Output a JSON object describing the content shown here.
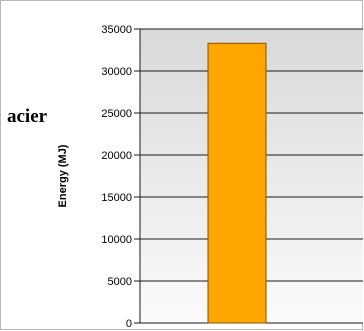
{
  "side_label": "acier",
  "chart_data": {
    "type": "bar",
    "title": "",
    "xlabel": "",
    "ylabel": "Energy (MJ)",
    "categories": [
      ""
    ],
    "values": [
      33300
    ],
    "ylim": [
      0,
      35000
    ],
    "yticks": [
      0,
      5000,
      10000,
      15000,
      20000,
      25000,
      30000,
      35000
    ],
    "ytick_labels": [
      "0",
      "5000",
      "10000",
      "15000",
      "20000",
      "25000",
      "30000",
      "35000"
    ],
    "grid": true,
    "bar_color": "#ffa500",
    "bar_edge_color": "#8a5200"
  }
}
